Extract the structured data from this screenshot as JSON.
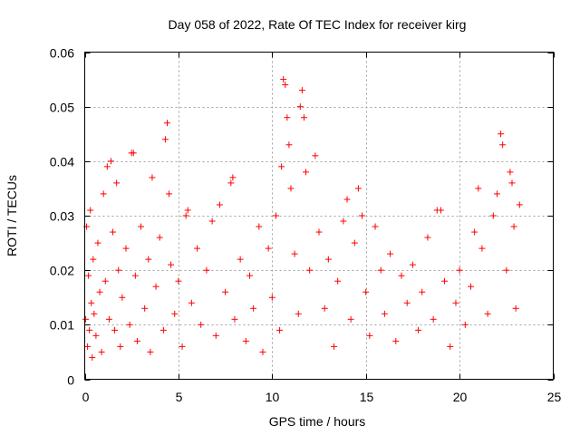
{
  "chart_data": {
    "type": "scatter",
    "title": "Day 058 of 2022, Rate Of TEC Index for receiver kirg",
    "xlabel": "GPS time / hours",
    "ylabel": "ROTI / TECUs",
    "xlim": [
      0,
      25
    ],
    "ylim": [
      0,
      0.06
    ],
    "xticks": [
      0,
      5,
      10,
      15,
      20,
      25
    ],
    "xtick_labels": [
      "0",
      "5",
      "10",
      "15",
      "20",
      "25"
    ],
    "yticks": [
      0,
      0.01,
      0.02,
      0.03,
      0.04,
      0.05,
      0.06
    ],
    "ytick_labels": [
      "0",
      "0.01",
      "0.02",
      "0.03",
      "0.04",
      "0.05",
      "0.06"
    ],
    "grid": true,
    "marker": "plus",
    "color": "#ff0000",
    "series": [
      {
        "points": [
          [
            0.05,
            0.011
          ],
          [
            0.1,
            0.028
          ],
          [
            0.15,
            0.006
          ],
          [
            0.2,
            0.019
          ],
          [
            0.25,
            0.009
          ],
          [
            0.3,
            0.031
          ],
          [
            0.35,
            0.014
          ],
          [
            0.4,
            0.004
          ],
          [
            0.45,
            0.022
          ],
          [
            0.5,
            0.012
          ],
          [
            0.6,
            0.008
          ],
          [
            0.7,
            0.025
          ],
          [
            0.8,
            0.016
          ],
          [
            0.9,
            0.005
          ],
          [
            1.0,
            0.034
          ],
          [
            1.1,
            0.018
          ],
          [
            1.2,
            0.039
          ],
          [
            1.3,
            0.011
          ],
          [
            1.4,
            0.04
          ],
          [
            1.5,
            0.027
          ],
          [
            1.6,
            0.009
          ],
          [
            1.7,
            0.036
          ],
          [
            1.8,
            0.02
          ],
          [
            1.9,
            0.006
          ],
          [
            2.0,
            0.015
          ],
          [
            2.2,
            0.024
          ],
          [
            2.4,
            0.01
          ],
          [
            2.5,
            0.0415
          ],
          [
            2.6,
            0.0415
          ],
          [
            2.7,
            0.019
          ],
          [
            2.8,
            0.007
          ],
          [
            3.0,
            0.028
          ],
          [
            3.2,
            0.013
          ],
          [
            3.4,
            0.022
          ],
          [
            3.5,
            0.005
          ],
          [
            3.6,
            0.037
          ],
          [
            3.8,
            0.017
          ],
          [
            4.0,
            0.026
          ],
          [
            4.2,
            0.009
          ],
          [
            4.3,
            0.044
          ],
          [
            4.4,
            0.047
          ],
          [
            4.5,
            0.034
          ],
          [
            4.6,
            0.021
          ],
          [
            4.8,
            0.012
          ],
          [
            5.0,
            0.018
          ],
          [
            5.2,
            0.006
          ],
          [
            5.4,
            0.03
          ],
          [
            5.5,
            0.031
          ],
          [
            5.7,
            0.014
          ],
          [
            6.0,
            0.024
          ],
          [
            6.2,
            0.01
          ],
          [
            6.5,
            0.02
          ],
          [
            6.8,
            0.029
          ],
          [
            7.0,
            0.008
          ],
          [
            7.2,
            0.032
          ],
          [
            7.5,
            0.016
          ],
          [
            7.8,
            0.036
          ],
          [
            7.9,
            0.037
          ],
          [
            8.0,
            0.011
          ],
          [
            8.3,
            0.022
          ],
          [
            8.6,
            0.007
          ],
          [
            8.8,
            0.019
          ],
          [
            9.0,
            0.013
          ],
          [
            9.3,
            0.028
          ],
          [
            9.5,
            0.005
          ],
          [
            9.8,
            0.024
          ],
          [
            10.0,
            0.015
          ],
          [
            10.2,
            0.03
          ],
          [
            10.4,
            0.009
          ],
          [
            10.5,
            0.039
          ],
          [
            10.6,
            0.055
          ],
          [
            10.7,
            0.054
          ],
          [
            10.8,
            0.048
          ],
          [
            10.9,
            0.043
          ],
          [
            11.0,
            0.035
          ],
          [
            11.2,
            0.023
          ],
          [
            11.4,
            0.012
          ],
          [
            11.5,
            0.05
          ],
          [
            11.6,
            0.053
          ],
          [
            11.7,
            0.048
          ],
          [
            11.8,
            0.038
          ],
          [
            12.0,
            0.02
          ],
          [
            12.3,
            0.041
          ],
          [
            12.5,
            0.027
          ],
          [
            12.8,
            0.013
          ],
          [
            13.0,
            0.022
          ],
          [
            13.3,
            0.006
          ],
          [
            13.5,
            0.018
          ],
          [
            13.8,
            0.029
          ],
          [
            14.0,
            0.033
          ],
          [
            14.2,
            0.011
          ],
          [
            14.4,
            0.025
          ],
          [
            14.6,
            0.035
          ],
          [
            14.8,
            0.03
          ],
          [
            15.0,
            0.016
          ],
          [
            15.2,
            0.008
          ],
          [
            15.5,
            0.028
          ],
          [
            15.8,
            0.02
          ],
          [
            16.0,
            0.012
          ],
          [
            16.3,
            0.023
          ],
          [
            16.6,
            0.007
          ],
          [
            16.9,
            0.019
          ],
          [
            17.2,
            0.014
          ],
          [
            17.5,
            0.021
          ],
          [
            17.8,
            0.009
          ],
          [
            18.0,
            0.016
          ],
          [
            18.3,
            0.026
          ],
          [
            18.6,
            0.011
          ],
          [
            18.8,
            0.031
          ],
          [
            19.0,
            0.031
          ],
          [
            19.2,
            0.018
          ],
          [
            19.5,
            0.006
          ],
          [
            19.8,
            0.014
          ],
          [
            20.0,
            0.02
          ],
          [
            20.3,
            0.01
          ],
          [
            20.6,
            0.017
          ],
          [
            20.8,
            0.027
          ],
          [
            21.0,
            0.035
          ],
          [
            21.2,
            0.024
          ],
          [
            21.5,
            0.012
          ],
          [
            21.8,
            0.03
          ],
          [
            22.0,
            0.034
          ],
          [
            22.2,
            0.045
          ],
          [
            22.3,
            0.043
          ],
          [
            22.5,
            0.02
          ],
          [
            22.7,
            0.038
          ],
          [
            22.8,
            0.036
          ],
          [
            22.9,
            0.028
          ],
          [
            23.0,
            0.013
          ],
          [
            23.2,
            0.032
          ]
        ]
      }
    ]
  }
}
